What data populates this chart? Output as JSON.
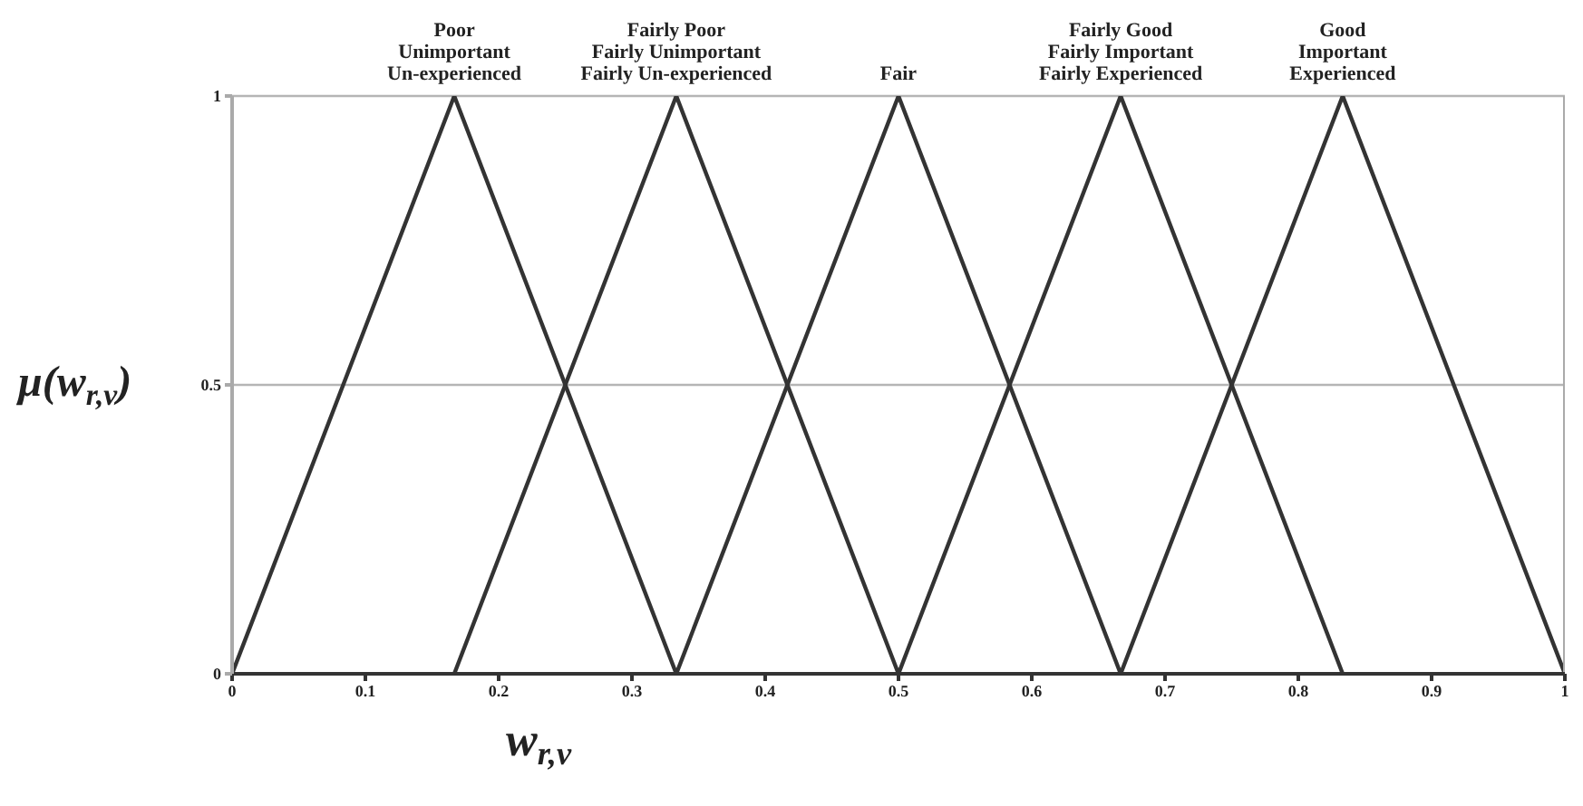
{
  "chart_data": {
    "type": "line",
    "xlabel": "w$_{r,v}$",
    "ylabel": "μ(w$_{r,v}$)",
    "series": [
      {
        "x": [
          0,
          0.1667,
          0.3333
        ],
        "values": [
          0,
          1,
          0
        ],
        "color": "#333333"
      },
      {
        "x": [
          0.1667,
          0.3333,
          0.5
        ],
        "values": [
          0,
          1,
          0
        ],
        "color": "#333333"
      },
      {
        "x": [
          0.3333,
          0.5,
          0.6667
        ],
        "values": [
          0,
          1,
          0
        ],
        "color": "#333333"
      },
      {
        "x": [
          0.5,
          0.6667,
          0.8333
        ],
        "values": [
          0,
          1,
          0
        ],
        "color": "#333333"
      },
      {
        "x": [
          0.6667,
          0.8333,
          1
        ],
        "values": [
          0,
          1,
          0
        ],
        "color": "#333333"
      }
    ],
    "xlim": [
      0,
      1
    ],
    "xticks": [
      0,
      0.1,
      0.2,
      0.3,
      0.4,
      0.5,
      0.6,
      0.7,
      0.8,
      0.9,
      1
    ],
    "ylim": [
      0,
      1
    ],
    "yticks": [
      0,
      0.5,
      1
    ],
    "grid": "y",
    "legend": false,
    "annotations": [
      {
        "text": "Poor\nUnimportant\nUn-experienced",
        "x": 0.1667,
        "y": 1
      },
      {
        "text": "Fairly Poor\nFairly Unimportant\nFairly Un-experienced",
        "x": 0.3333,
        "y": 1
      },
      {
        "text": "Fair",
        "x": 0.5,
        "y": 1
      },
      {
        "text": "Fairly Good\nFairly Important\nFairly Experienced",
        "x": 0.6667,
        "y": 1
      },
      {
        "text": "Good\nImportant\nExperienced",
        "x": 0.8333,
        "y": 1
      }
    ]
  }
}
